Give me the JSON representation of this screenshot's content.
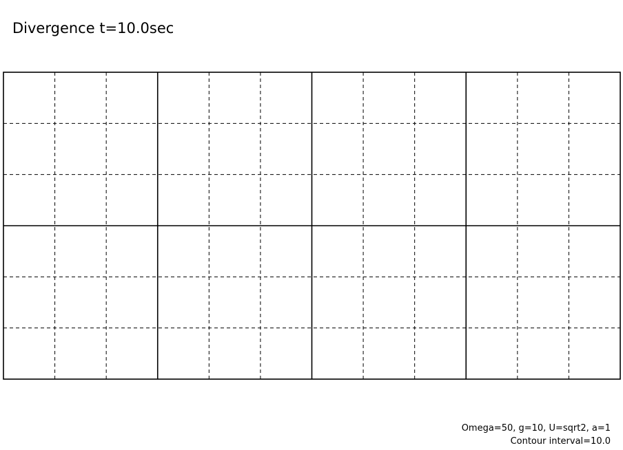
{
  "chart_data": {
    "type": "contour",
    "title": "Divergence t=10.0sec",
    "annotations": [
      "Omega=50, g=10, U=sqrt2, a=1",
      "Contour interval=10.0"
    ]
  }
}
